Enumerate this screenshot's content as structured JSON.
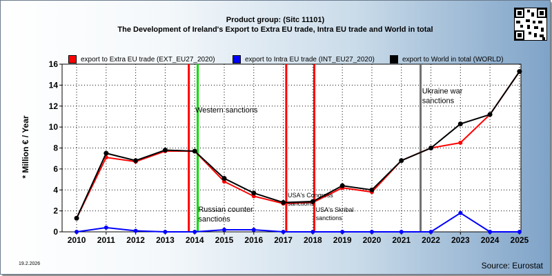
{
  "chart_data": {
    "type": "line",
    "title": "Product group:  (Sitc 11101)",
    "subtitle": "The Development of Ireland's Export to Extra EU trade, Intra EU trade and World in total",
    "ylabel": "* Million € / Year",
    "xlabel": "",
    "ylim": [
      0,
      16
    ],
    "yticks": [
      "0",
      "2",
      "4",
      "6",
      "8",
      "10",
      "12",
      "14",
      "16"
    ],
    "x": [
      "2010",
      "2011",
      "2012",
      "2013",
      "2014",
      "2015",
      "2016",
      "2017",
      "2018",
      "2019",
      "2020",
      "2021",
      "2022",
      "2023",
      "2024",
      "2025"
    ],
    "grid": true,
    "legend_position": "top",
    "series": [
      {
        "name": "export to Extra EU trade (EXT_EU27_2020)",
        "color": "#ff0000",
        "values": [
          1.3,
          7.1,
          6.7,
          7.7,
          7.7,
          4.8,
          3.4,
          2.7,
          2.8,
          4.2,
          3.8,
          null,
          null,
          8.5,
          null,
          null
        ]
      },
      {
        "name": "export to Intra EU trade (INT_EU27_2020)",
        "color": "#0000ff",
        "values": [
          0.0,
          0.4,
          0.1,
          0.0,
          0.0,
          0.2,
          0.2,
          0.0,
          0.0,
          0.0,
          0.0,
          0.0,
          0.0,
          1.8,
          0.0,
          0.0
        ]
      },
      {
        "name": "export to World in total (WORLD)",
        "color": "#000000",
        "values": [
          1.3,
          7.5,
          6.8,
          7.8,
          7.7,
          5.1,
          3.7,
          2.8,
          2.9,
          4.4,
          4.0,
          6.8,
          8.0,
          10.3,
          11.2,
          15.3
        ]
      }
    ],
    "events": [
      {
        "x": 2013.8,
        "color": "#ff0000",
        "label": [
          "Western sanctions"
        ],
        "label_x": 2014.02,
        "label_y": 11.4,
        "size": 11
      },
      {
        "x": 2014.1,
        "color": "#00dd00",
        "label": [
          "Russian counter",
          "sanctions"
        ],
        "label_x": 2014.12,
        "label_y": 1.9,
        "size": 11
      },
      {
        "x": 2017.1,
        "color": "#ff0000",
        "label": [
          "USA's Congress",
          "sanctions"
        ],
        "label_x": 2017.15,
        "label_y": 3.3,
        "size": 9
      },
      {
        "x": 2018.05,
        "color": "#ff0000",
        "label": [
          "USA's Skribal",
          "sanctions"
        ],
        "label_x": 2018.1,
        "label_y": 1.9,
        "size": 9
      },
      {
        "x": 2021.65,
        "color": "#707070",
        "label": [
          "Ukraine war",
          "sanctions"
        ],
        "label_x": 2021.7,
        "label_y": 13.2,
        "size": 11
      }
    ]
  },
  "footer": {
    "date": "19.2.2026",
    "source": "Source: Eurostat"
  }
}
